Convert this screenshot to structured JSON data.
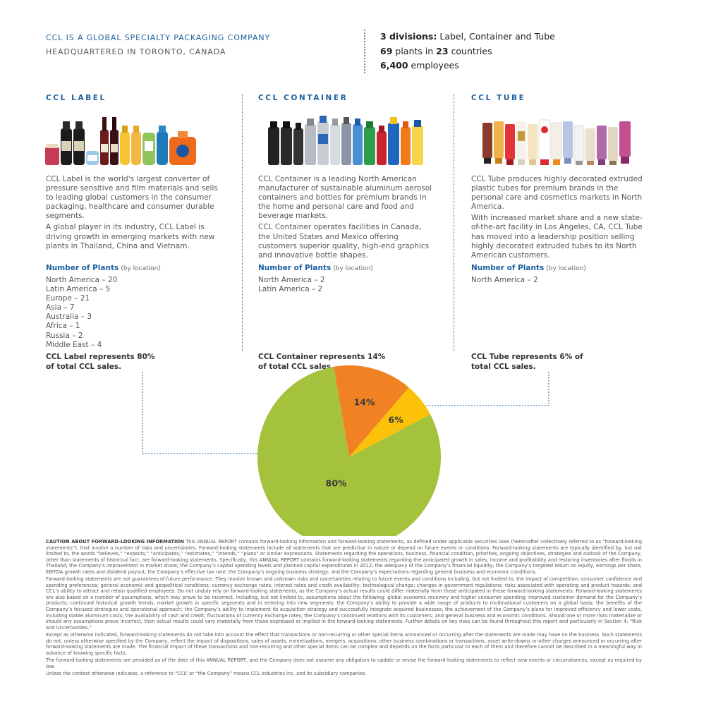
{
  "header": {
    "company_line": "CCL IS A GLOBAL SPECIALTY PACKAGING COMPANY",
    "hq_line": "HEADQUARTERED IN TORONTO, CANADA"
  },
  "facts": [
    {
      "bold": "3 divisions:",
      "text": " Label, Container and Tube"
    },
    {
      "bold": "69",
      "text": " plants in ",
      "bold2": "23",
      "text2": " countries"
    },
    {
      "bold": "6,400",
      "text": " employees"
    }
  ],
  "columns": [
    {
      "title": "CCL LABEL",
      "paragraphs": [
        "CCL Label is the world's largest converter of pressure sensitive and film materials and sells to leading global customers in the consumer packaging, healthcare and consumer durable segments.",
        "A global player in its industry, CCL Label is driving growth in emerging markets with new plants in Thailand, China and Vietnam."
      ],
      "plants_label": "Number of Plants",
      "plants_note": "(by location)",
      "plants": [
        "North America – 20",
        "Latin America – 5",
        "Europe – 21",
        "Asia – 7",
        "Australia – 3",
        "Africa – 1",
        "Russia – 2",
        "Middle East – 4"
      ],
      "sales_line1": "CCL Label represents 80%",
      "sales_line2": "of total CCL sales."
    },
    {
      "title": "CCL CONTAINER",
      "paragraphs": [
        "CCL Container is a leading North American manufacturer of sustainable aluminum aerosol containers and bottles for premium brands in the home and personal care and food and beverage markets.",
        "CCL Container operates facilities in Canada, the United States and Mexico offering customers superior quality, high-end graphics and innovative bottle shapes."
      ],
      "plants_label": "Number of Plants",
      "plants_note": "(by location)",
      "plants": [
        "North America – 2",
        "Latin America – 2"
      ],
      "sales_line1": "CCL Container represents 14%",
      "sales_line2": "of total CCL sales."
    },
    {
      "title": "CCL TUBE",
      "paragraphs": [
        "CCL Tube produces highly decorated extruded plastic tubes for premium brands in the personal care and cosmetics markets in North America.",
        "With increased market share and a new state-of-the-art facility in Los Angeles, CA, CCL Tube has moved into a leadership position selling highly decorated extruded tubes to its North American customers."
      ],
      "plants_label": "Number of Plants",
      "plants_note": "(by location)",
      "plants": [
        "North America – 2"
      ],
      "sales_line1": "CCL Tube represents 6% of",
      "sales_line2": "total CCL sales."
    }
  ],
  "chart_data": {
    "type": "pie",
    "categories": [
      "CCL Label",
      "CCL Container",
      "CCL Tube"
    ],
    "values": [
      80,
      14,
      6
    ],
    "labels": [
      "80%",
      "14%",
      "6%"
    ],
    "colors": [
      "#a5c23c",
      "#f08224",
      "#fcc20a"
    ]
  },
  "legal": {
    "heading": "CAUTION ABOUT FORWARD-LOOKING INFORMATION",
    "p1": "This ANNUAL REPORT contains forward-looking information and forward-looking statements, as defined under applicable securities laws (hereinafter collectively referred to as “forward-looking statements”), that involve a number of risks and uncertainties. Forward-looking statements include all statements that are predictive in nature or depend on future events or conditions. Forward-looking statements are typically identified by, but not limited to, the words “believes,” “expects,” “anticipates,” “estimates,” “intends,” “plans” or similar expressions. Statements regarding the operations, business, financial condition, priorities, ongoing objectives, strategies and outlook of the Company, other than statements of historical fact, are forward-looking statements. Specifically, this ANNUAL REPORT contains forward-looking statements regarding the anticipated growth in sales, income and profitability and restoring inventories after floods in Thailand; the Company’s improvement in market share; the Company’s capital spending levels and planned capital expenditures in 2012; the adequacy of the Company’s financial liquidity; the Company’s targeted return on equity, earnings per share, EBITDA growth rates and dividend payout; the Company’s effective tax rate; the Company’s ongoing business strategy; and the Company’s expectations regarding general business and economic conditions.",
    "p2": "Forward-looking statements are not guarantees of future performance. They involve known and unknown risks and uncertainties relating to future events and conditions including, but not limited to, the impact of competition; consumer confidence and spending preferences; general economic and geopolitical conditions; currency exchange rates; interest rates and credit availability; technological change; changes in government regulations; risks associated with operating and product hazards; and CCL’s ability to attract and retain qualified employees. Do not unduly rely on forward-looking statements, as the Company’s actual results could differ materially from those anticipated in these forward-looking statements. Forward-looking statements are also based on a number of assumptions, which may prove to be incorrect, including, but not limited to, assumptions about the following: global economic recovery and higher consumer spending; improved customer demand for the Company’s products; continued historical growth trends, market growth in specific segments and in entering into new segments; the Company’s ability to provide a wide range of products to multinational customers on a global basis; the benefits of the Company’s focused strategies and operational approach; the Company’s ability to implement its acquisition strategy and successfully integrate acquired businesses; the achievement of the Company’s plans for improved efficiency and lower costs, including stable aluminum costs; the availability of cash and credit; fluctuations of currency exchange rates; the Company’s continued relations with its customers; and general business and economic conditions. Should one or more risks materialize or should any assumptions prove incorrect, then actual results could vary materially from those expressed or implied in the forward-looking statements. Further details on key risks can be found throughout this report and particularly in Section 4: “Risk and Uncertainties.”",
    "p3": "Except as otherwise indicated, forward-looking statements do not take into account the effect that transactions or non-recurring or other special items announced or occurring after the statements are made may have on the business. Such statements do not, unless otherwise specified by the Company, reflect the impact of dispositions, sales of assets, monetizations, mergers, acquisitions, other business combinations or transactions, asset write-downs or other charges announced or occurring after forward-looking statements are made. The financial impact of these transactions and non-recurring and other special items can be complex and depends on the facts particular to each of them and therefore cannot be described in a meaningful way in advance of knowing specific facts.",
    "p4": "The forward-looking statements are provided as of the date of this ANNUAL REPORT, and the Company does not assume any obligation to update or revise the forward-looking statements to reflect new events or circumstances, except as required by law.",
    "p5": "Unless the context otherwise indicates, a reference to “CCL” or “the Company” means CCL Industries Inc. and its subsidiary companies."
  }
}
